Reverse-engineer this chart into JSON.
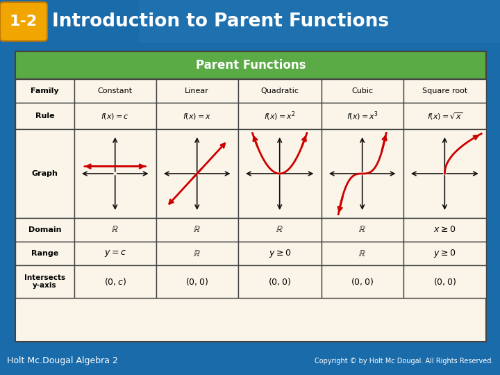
{
  "title_text": "Introduction to Parent Functions",
  "badge_text": "1-2",
  "badge_color": "#F0A500",
  "header_bg_left": "#1A6BAA",
  "header_bg_right": "#4DA8D8",
  "table_title": "Parent Functions",
  "table_title_bg": "#5AAA46",
  "table_title_color": "#FFFFFF",
  "table_bg": "#FAF5E8",
  "table_border": "#444444",
  "col_headers": [
    "Family",
    "Constant",
    "Linear",
    "Quadratic",
    "Cubic",
    "Square root"
  ],
  "footer_left": "Holt Mc.Dougal Algebra 2",
  "footer_right": "Copyright © by Holt Mc Dougal. All Rights Reserved.",
  "footer_bg": "#1A5B8C",
  "footer_color": "#FFFFFF",
  "red_color": "#CC0000",
  "arrow_color": "#111111",
  "fig_width": 7.2,
  "fig_height": 5.4,
  "dpi": 100
}
